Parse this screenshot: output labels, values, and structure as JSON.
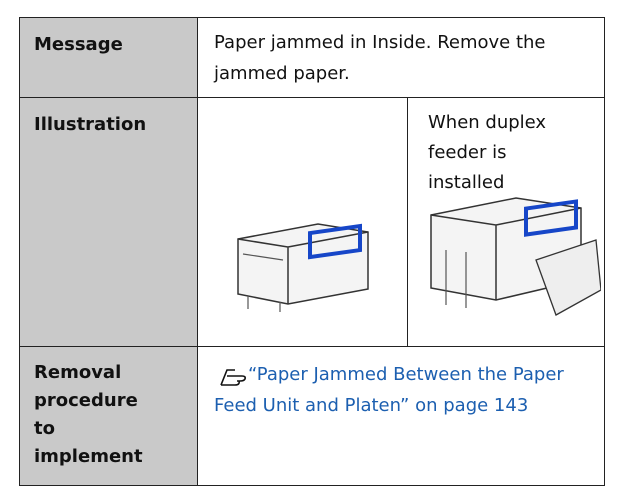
{
  "table": {
    "rows": [
      {
        "header": "Message",
        "text": "Paper jammed in Inside. Remove the jammed paper."
      },
      {
        "header": "Illustration",
        "note": "When duplex feeder is installed"
      },
      {
        "header": "Removal procedure to implement",
        "link": "“Paper Jammed Between the Paper Feed Unit and Platen” on page 143"
      }
    ]
  }
}
